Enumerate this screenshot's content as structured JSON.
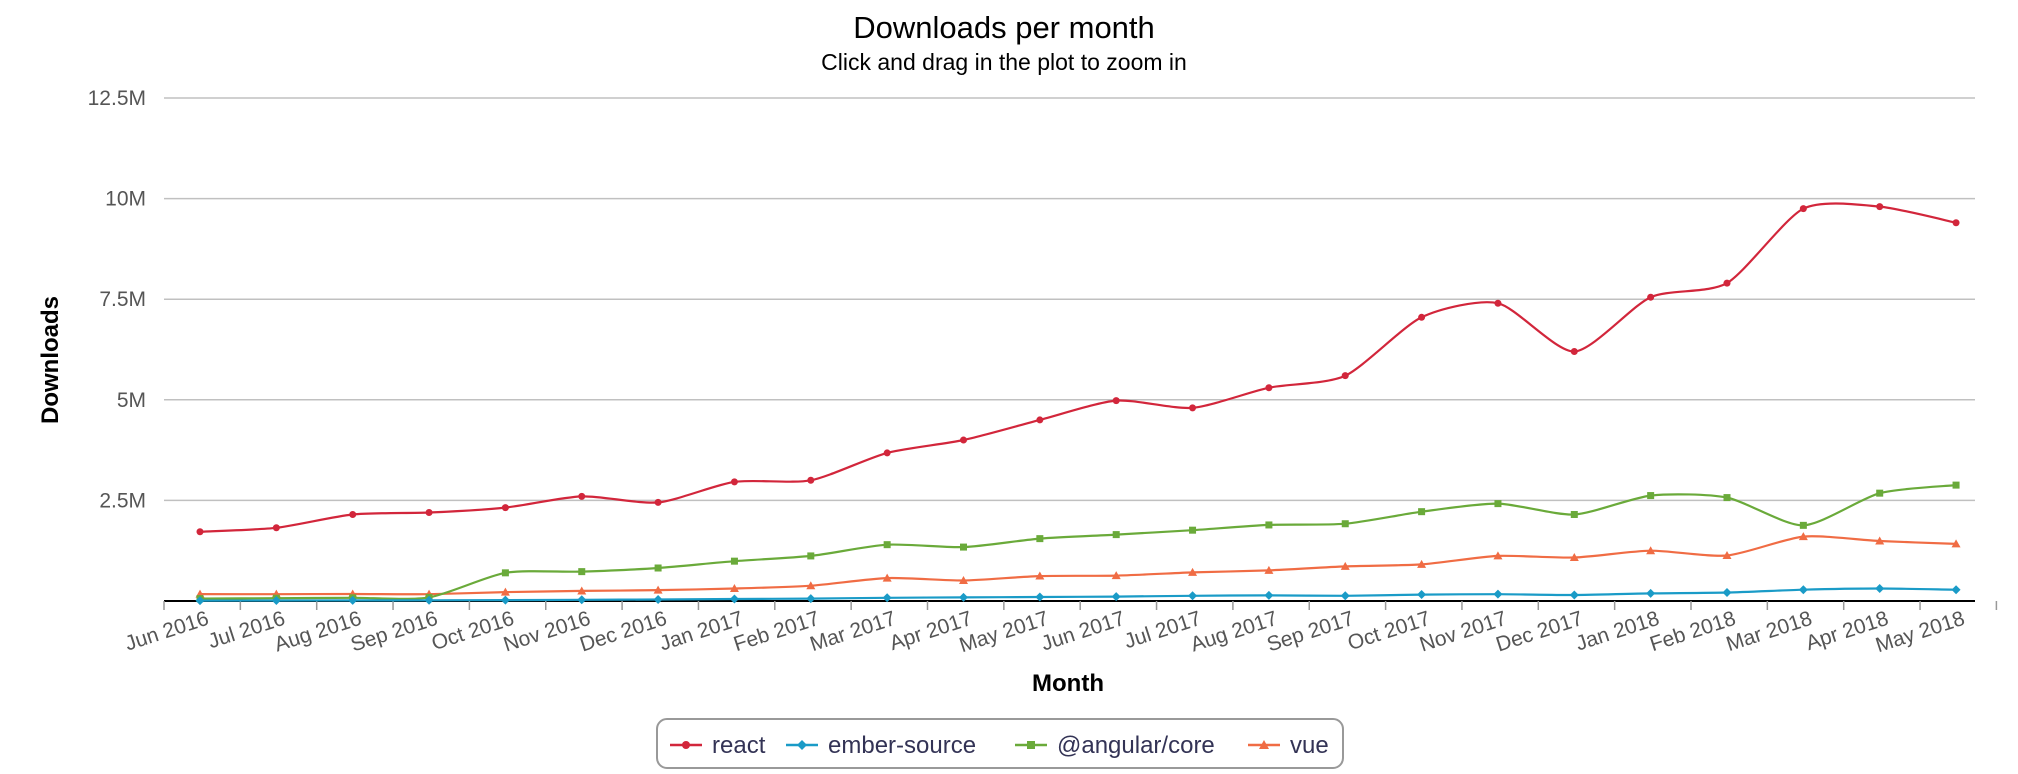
{
  "chart_data": {
    "type": "line",
    "title": "Downloads per month",
    "subtitle": "Click and drag in the plot to zoom in",
    "xlabel": "Month",
    "ylabel": "Downloads",
    "ylim": [
      0,
      12500000
    ],
    "yticks": [
      {
        "value": 2500000,
        "label": "2.5M"
      },
      {
        "value": 5000000,
        "label": "5M"
      },
      {
        "value": 7500000,
        "label": "7.5M"
      },
      {
        "value": 10000000,
        "label": "10M"
      },
      {
        "value": 12500000,
        "label": "12.5M"
      }
    ],
    "categories": [
      "Jun 2016",
      "Jul 2016",
      "Aug 2016",
      "Sep 2016",
      "Oct 2016",
      "Nov 2016",
      "Dec 2016",
      "Jan 2017",
      "Feb 2017",
      "Mar 2017",
      "Apr 2017",
      "May 2017",
      "Jun 2017",
      "Jul 2017",
      "Aug 2017",
      "Sep 2017",
      "Oct 2017",
      "Nov 2017",
      "Dec 2017",
      "Jan 2018",
      "Feb 2018",
      "Mar 2018",
      "Apr 2018",
      "May 2018"
    ],
    "grid": true,
    "legend": "bottom-center",
    "series": [
      {
        "name": "react",
        "color": "#d2263b",
        "marker": "circle",
        "values": [
          1720000,
          1820000,
          2150000,
          2200000,
          2320000,
          2600000,
          2450000,
          2960000,
          3000000,
          3680000,
          4000000,
          4500000,
          4980000,
          4800000,
          5300000,
          5600000,
          7050000,
          7400000,
          6200000,
          7550000,
          7900000,
          9750000,
          9800000,
          9400000
        ]
      },
      {
        "name": "ember-source",
        "color": "#1a9bc7",
        "marker": "diamond",
        "values": [
          10000,
          12000,
          15000,
          18000,
          22000,
          30000,
          38000,
          50000,
          60000,
          80000,
          90000,
          100000,
          110000,
          130000,
          140000,
          130000,
          160000,
          170000,
          150000,
          190000,
          210000,
          280000,
          310000,
          280000
        ]
      },
      {
        "name": "@angular/core",
        "color": "#6aaa3a",
        "marker": "square",
        "values": [
          60000,
          70000,
          80000,
          90000,
          700000,
          730000,
          820000,
          990000,
          1120000,
          1400000,
          1340000,
          1550000,
          1650000,
          1760000,
          1890000,
          1920000,
          2220000,
          2420000,
          2150000,
          2620000,
          2570000,
          1880000,
          2680000,
          2880000
        ]
      },
      {
        "name": "vue",
        "color": "#f06c44",
        "marker": "triangle",
        "values": [
          170000,
          170000,
          175000,
          170000,
          220000,
          250000,
          270000,
          310000,
          380000,
          570000,
          510000,
          620000,
          630000,
          710000,
          760000,
          860000,
          910000,
          1120000,
          1080000,
          1250000,
          1130000,
          1600000,
          1490000,
          1420000
        ]
      }
    ]
  }
}
